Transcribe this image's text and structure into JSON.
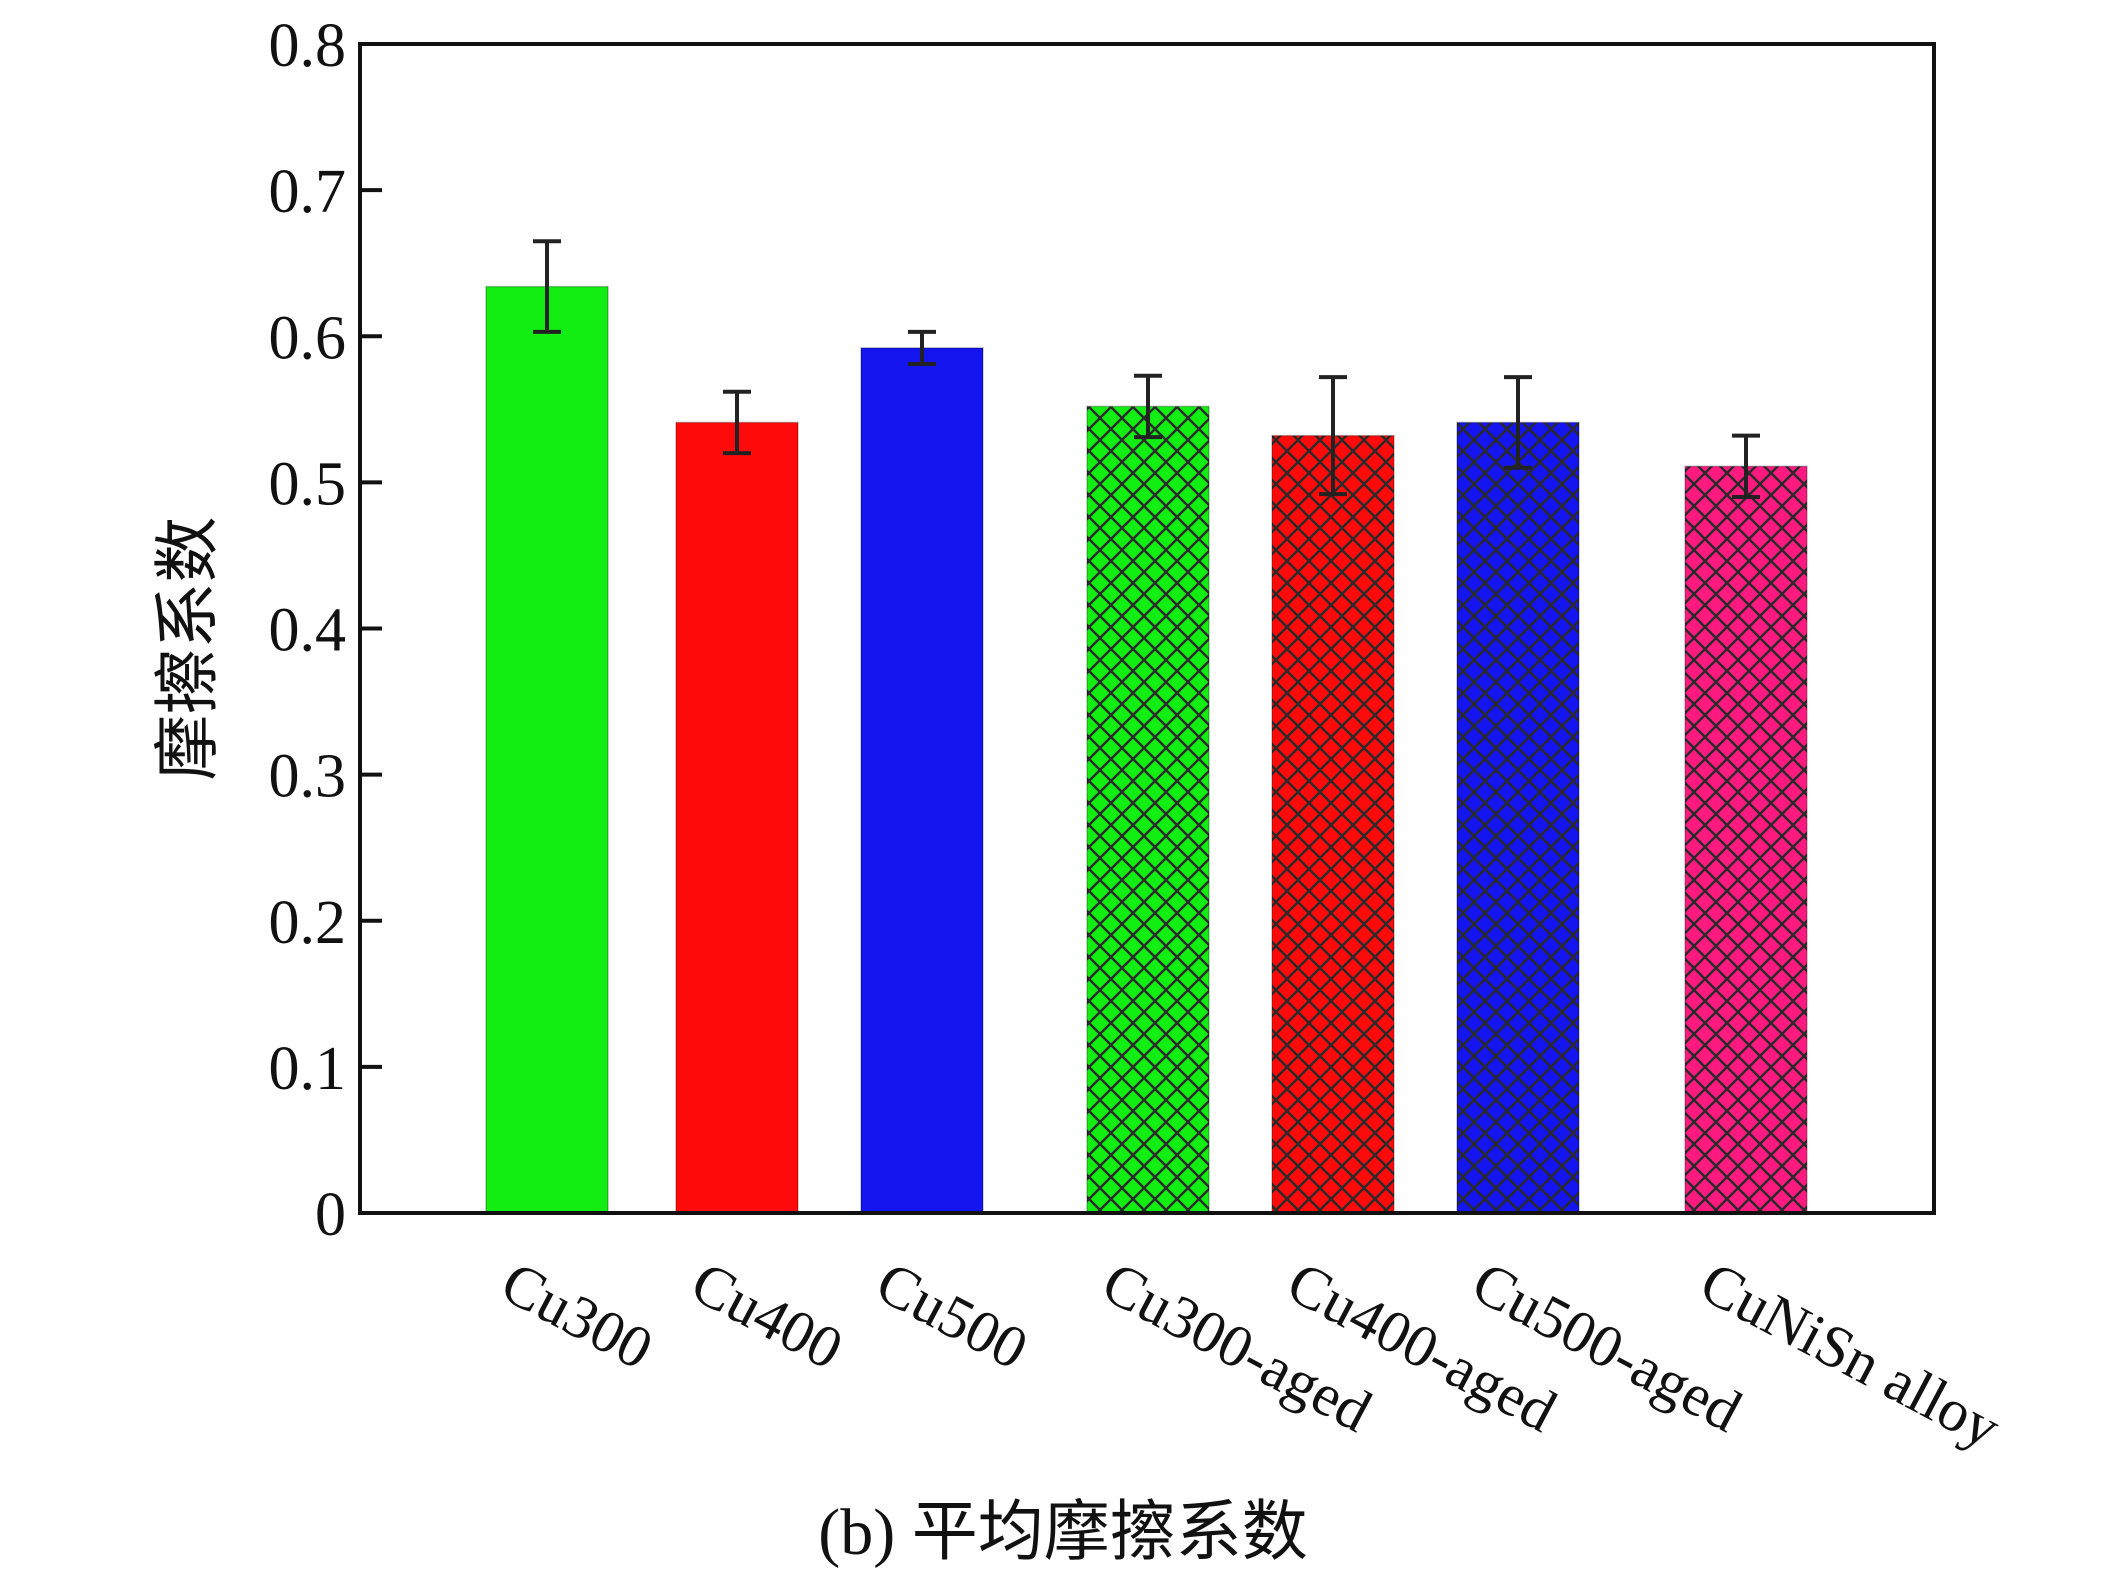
{
  "colors": {
    "green": "#12ee12",
    "red": "#ff0a0a",
    "blue": "#1414ee",
    "pink": "#ff1a80",
    "axis": "#111111",
    "hatch": "#2a2a2a"
  },
  "chart_data": {
    "type": "bar",
    "ylabel": "摩擦系数",
    "ylim": [
      0,
      0.8
    ],
    "yticks": [
      "0",
      "0.1",
      "0.2",
      "0.3",
      "0.4",
      "0.5",
      "0.6",
      "0.7",
      "0.8"
    ],
    "grid": false,
    "categories": [
      "Cu300",
      "Cu400",
      "Cu500",
      "Cu300-aged",
      "Cu400-aged",
      "Cu500-aged",
      "CuNiSn alloy"
    ],
    "values": [
      0.634,
      0.541,
      0.592,
      0.552,
      0.532,
      0.541,
      0.511
    ],
    "errors": [
      0.031,
      0.021,
      0.011,
      0.021,
      0.04,
      0.031,
      0.021
    ],
    "bar_colors": [
      "green",
      "red",
      "blue",
      "green",
      "red",
      "blue",
      "pink"
    ],
    "hatched": [
      false,
      false,
      false,
      true,
      true,
      true,
      true
    ]
  },
  "caption": "(b) 平均摩擦系数"
}
